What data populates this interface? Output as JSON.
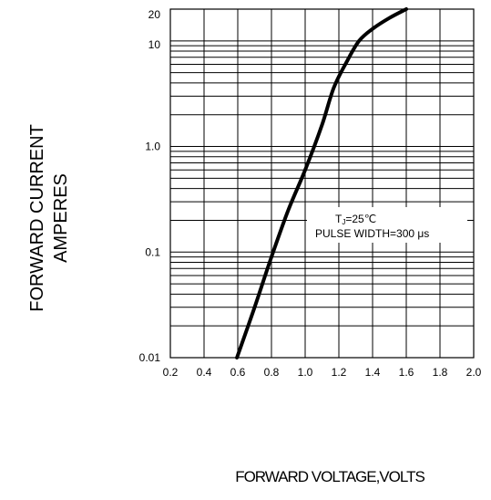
{
  "chart_data": {
    "type": "line",
    "y_scale": "log",
    "xlim": [
      0.2,
      2.0
    ],
    "ylim": [
      0.01,
      20
    ],
    "x_ticks": [
      "0.2",
      "0.4",
      "0.6",
      "0.8",
      "1.0",
      "1.2",
      "1.4",
      "1.6",
      "1.8",
      "2.0"
    ],
    "y_ticks": [
      {
        "value": 0.01,
        "label": "0.01"
      },
      {
        "value": 0.1,
        "label": "0.1"
      },
      {
        "value": 1.0,
        "label": "1.0"
      },
      {
        "value": 10,
        "label": "10"
      },
      {
        "value": 20,
        "label": "20"
      }
    ],
    "ylabel_lines": [
      "FORWARD CURRENT",
      "AMPERES"
    ],
    "xlabel": "FORWARD VOLTAGE,VOLTS",
    "annotation": {
      "line1_main": "T",
      "line1_sub": "J",
      "line1_rest": "=25℃",
      "line2": "PULSE WIDTH=300 μs"
    },
    "grid": true,
    "series": [
      {
        "color": "#000000",
        "points": [
          [
            0.595,
            0.01
          ],
          [
            0.7,
            0.03
          ],
          [
            0.8,
            0.09
          ],
          [
            0.9,
            0.25
          ],
          [
            1.0,
            0.6
          ],
          [
            1.1,
            1.6
          ],
          [
            1.17,
            3.6
          ],
          [
            1.25,
            6.5
          ],
          [
            1.32,
            10.0
          ],
          [
            1.4,
            13.0
          ],
          [
            1.5,
            16.5
          ],
          [
            1.6,
            20.0
          ]
        ]
      }
    ]
  }
}
